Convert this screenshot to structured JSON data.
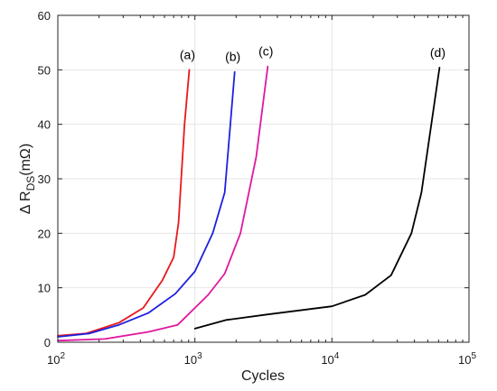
{
  "chart_data": {
    "type": "line",
    "xscale": "log",
    "xlim": [
      100,
      100000
    ],
    "ylim": [
      0,
      60
    ],
    "xlabel": "Cycles",
    "ylabel": "Δ R",
    "ylabel_sub": "DS",
    "ylabel_unit": "(mΩ)",
    "grid": true,
    "x_ticks": [
      {
        "value": 100,
        "base": "10",
        "exp": "2"
      },
      {
        "value": 1000,
        "base": "10",
        "exp": "3"
      },
      {
        "value": 10000,
        "base": "10",
        "exp": "4"
      },
      {
        "value": 100000,
        "base": "10",
        "exp": "5"
      }
    ],
    "y_ticks": [
      {
        "value": 0,
        "label": "0"
      },
      {
        "value": 10,
        "label": "10"
      },
      {
        "value": 20,
        "label": "20"
      },
      {
        "value": 30,
        "label": "30"
      },
      {
        "value": 40,
        "label": "40"
      },
      {
        "value": 50,
        "label": "50"
      },
      {
        "value": 60,
        "label": "60"
      }
    ],
    "series": [
      {
        "label": "(a)",
        "color": "#e8191c",
        "x": [
          100,
          160,
          280,
          420,
          580,
          700,
          760,
          840,
          910
        ],
        "y": [
          1.2,
          1.6,
          3.6,
          6.3,
          11.4,
          15.6,
          22.0,
          40.0,
          50.0
        ]
      },
      {
        "label": "(b)",
        "color": "#1f1fe0",
        "x": [
          100,
          170,
          280,
          460,
          720,
          1000,
          1350,
          1650,
          1950
        ],
        "y": [
          1.0,
          1.6,
          3.2,
          5.4,
          8.9,
          13.0,
          20.0,
          27.5,
          49.6
        ]
      },
      {
        "label": "(c)",
        "color": "#e0189f",
        "x": [
          100,
          220,
          460,
          750,
          1250,
          1650,
          2150,
          2800,
          3400
        ],
        "y": [
          0.3,
          0.6,
          1.9,
          3.2,
          8.7,
          12.6,
          20.0,
          34.0,
          50.6
        ]
      },
      {
        "label": "(d)",
        "color": "#000000",
        "x": [
          1000,
          1700,
          3400,
          10000,
          17500,
          27000,
          38000,
          45000,
          61000
        ],
        "y": [
          2.5,
          4.1,
          5.1,
          6.6,
          8.7,
          12.3,
          20.0,
          27.5,
          50.4
        ]
      }
    ]
  }
}
